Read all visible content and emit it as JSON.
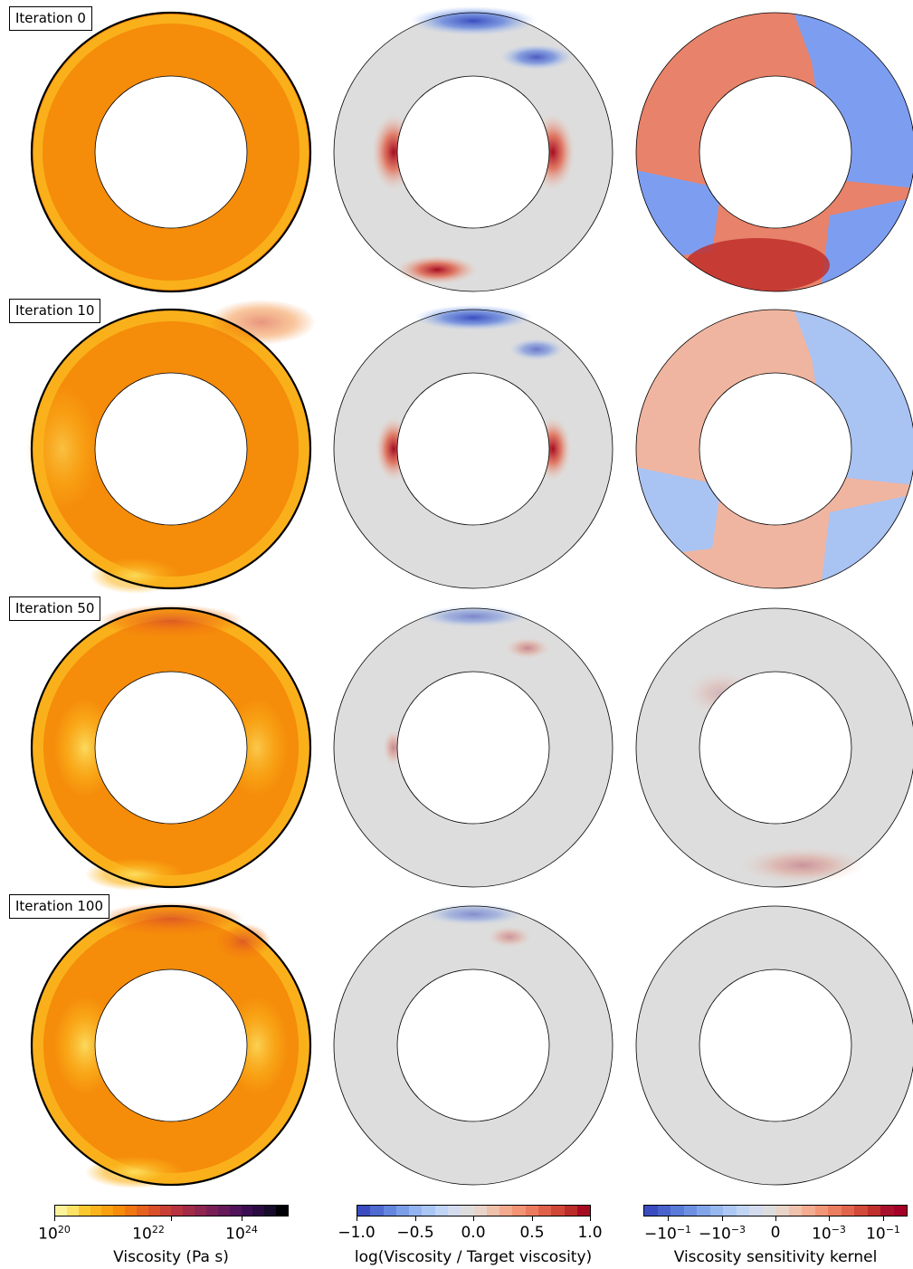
{
  "rows": [
    {
      "label": "Iteration 0"
    },
    {
      "label": "Iteration 10"
    },
    {
      "label": "Iteration 50"
    },
    {
      "label": "Iteration 100"
    }
  ],
  "colorbars": [
    {
      "title": "Viscosity (Pa s)",
      "ticks": [
        {
          "base": "10",
          "exp": "20"
        },
        {
          "base": "10",
          "exp": "22"
        },
        {
          "base": "10",
          "exp": "24"
        }
      ],
      "colors": [
        "#fbf29a",
        "#fce366",
        "#fcc830",
        "#fbb41d",
        "#f9a011",
        "#f68c0a",
        "#f07613",
        "#e5611e",
        "#d84f2a",
        "#c83f35",
        "#b6333f",
        "#a22b47",
        "#8e254f",
        "#791f55",
        "#651958",
        "#511359",
        "#3d0d54",
        "#2a0a40",
        "#160b29",
        "#000004"
      ]
    },
    {
      "title": "log(Viscosity / Target viscosity)",
      "ticks": [
        "−1.0",
        "−0.5",
        "0.0",
        "0.5",
        "1.0"
      ],
      "colors": [
        "#3b4cc0",
        "#4f6ad0",
        "#6586de",
        "#7b9ee8",
        "#93b4f0",
        "#aac6f5",
        "#c0d4f5",
        "#d3dbee",
        "#dddddd",
        "#e8d4c9",
        "#efc0aa",
        "#f3aa8f",
        "#f39475",
        "#ec7b5e",
        "#e06149",
        "#d04737",
        "#bc2d2a",
        "#a50c22"
      ]
    },
    {
      "title": "Viscosity sensitivity kernel",
      "ticks": [
        {
          "text": "−10",
          "exp": "−1"
        },
        {
          "text": "−10",
          "exp": "−3"
        },
        {
          "text": "0"
        },
        {
          "text": "10",
          "exp": "−3"
        },
        {
          "text": "10",
          "exp": "−1"
        }
      ],
      "colors": [
        "#3b4cc0",
        "#4a63cc",
        "#5b7bd8",
        "#6d90e2",
        "#82a5ea",
        "#98b8f0",
        "#adc8f4",
        "#c2d4f4",
        "#d4dbee",
        "#dddddd",
        "#e8d4c9",
        "#f0c1ab",
        "#f4ac91",
        "#f39678",
        "#ec7e60",
        "#e1654b",
        "#d24a39",
        "#c0302c",
        "#a8102b",
        "#a50026"
      ]
    }
  ]
}
